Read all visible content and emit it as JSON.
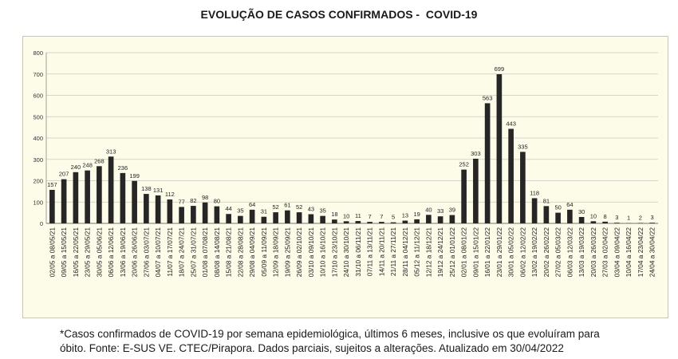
{
  "chart_data": {
    "type": "bar",
    "title": "EVOLUÇÃO DE CASOS CONFIRMADOS -  COVID-19",
    "xlabel": "",
    "ylabel": "",
    "ylim": [
      0,
      800
    ],
    "yticks": [
      0,
      100,
      200,
      300,
      400,
      500,
      600,
      700,
      800
    ],
    "grid": true,
    "legend": "none",
    "bar_color": "#262626",
    "background_color": "#fdfce9",
    "categories": [
      "02/05 a 08/05/21",
      "09/05 a 15/05/21",
      "16/05 a 22/05/21",
      "23/05 a 29/05/21",
      "30/05 a 05/06/21",
      "06/06 a 12/06/21",
      "13/06 a 19/06/21",
      "20/06 a 26/06/21",
      "27/06 a 03/07/21",
      "04/07 a 10/07/21",
      "11/07 a 17/07/21",
      "18/07 a 24/07/21",
      "25/07 a 31/07/21",
      "01/08 a 07/08/21",
      "08/08 a 14/08/21",
      "15/08 a 21/08/21",
      "22/08 a 28/08/21",
      "29/08 a 04/09/21",
      "05/09 a 11/09/21",
      "12/09 a 18/09/21",
      "19/09 a 25/09/21",
      "26/09 a 02/10/21",
      "03/10 a 09/10/21",
      "10/10 a 16/10/21",
      "17/10 a 23/10/21",
      "24/10 a 30/10/21",
      "31/10 a 06/11/21",
      "07/11 a 13/11/21",
      "14/11 a 20/11/21",
      "21/11 a 27/11/21",
      "28/11 a 04/12/21",
      "05/12 a 11/12/21",
      "12/12 a 18/12/21",
      "19/12 a 24/12/21",
      "25/12 a 01/01/22",
      "02/01 a 08/01/22",
      "09/01 a 15/01/22",
      "16/01 a 22/01/22",
      "23/01 a 29/01/22",
      "30/01 a 05/02/22",
      "06/02 a 12/02/22",
      "13/02 a 19/02/22",
      "20/02 a 26/02/22",
      "27/02 a 05/03/22",
      "06/03 a 12/03/22",
      "13/03 a 19/03/22",
      "20/03 a 26/03/22",
      "27/03 a 02/04/22",
      "03/04 a 09/04/22",
      "10/04 a 16/04/22",
      "17/04 a 23/04/22",
      "24/04 a 30/04/22"
    ],
    "values": [
      157,
      207,
      240,
      248,
      268,
      313,
      236,
      199,
      138,
      131,
      112,
      77,
      82,
      98,
      80,
      44,
      35,
      64,
      31,
      52,
      61,
      52,
      43,
      35,
      18,
      10,
      11,
      7,
      7,
      5,
      13,
      19,
      40,
      33,
      39,
      252,
      303,
      563,
      699,
      443,
      335,
      118,
      81,
      50,
      64,
      30,
      10,
      8,
      3,
      1,
      2,
      3
    ]
  },
  "footnote": {
    "line1": "*Casos confirmados de COVID-19 por semana epidemiológica, últimos 6 meses, inclusive os que evoluíram para",
    "line2": "óbito. Fonte: E-SUS VE. CTEC/Pirapora. Dados parciais, sujeitos a alterações. Atualizado em 30/04/2022"
  }
}
